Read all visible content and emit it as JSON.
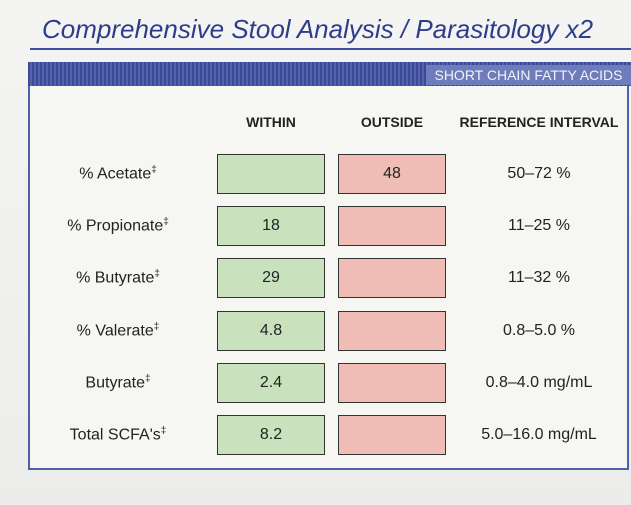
{
  "header": {
    "title": "Comprehensive Stool Analysis / Parasitology x2",
    "section": "SHORT CHAIN FATTY ACIDS"
  },
  "table": {
    "columns": [
      "WITHIN",
      "OUTSIDE",
      "REFERENCE INTERVAL"
    ],
    "rows": [
      {
        "label": "% Acetate",
        "mark": "‡",
        "outside": 48,
        "reference": "50–72 %"
      },
      {
        "label": "% Propionate",
        "mark": "‡",
        "within": 18,
        "reference": "11–25 %"
      },
      {
        "label": "% Butyrate",
        "mark": "‡",
        "within": 29,
        "reference": "11–32 %"
      },
      {
        "label": "% Valerate",
        "mark": "‡",
        "within": 4.8,
        "reference": "0.8–5.0 %"
      },
      {
        "label": "Butyrate",
        "mark": "‡",
        "within": 2.4,
        "reference": "0.8–4.0 mg/mL"
      },
      {
        "label": "Total SCFA's",
        "mark": "‡",
        "within": 8.2,
        "reference": "5.0–16.0 mg/mL"
      }
    ]
  }
}
